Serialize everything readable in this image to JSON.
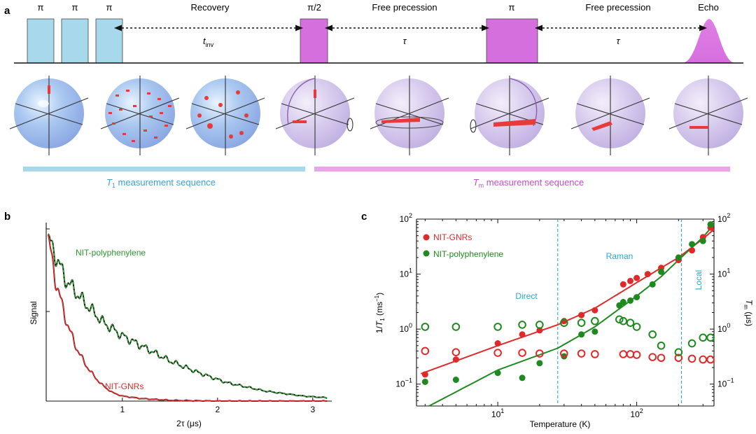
{
  "panel_a": {
    "label": "a",
    "pulses": {
      "pi1": "π",
      "pi2": "π",
      "pi3": "π",
      "pi_half": "π/2",
      "pi_refocus": "π"
    },
    "phases": {
      "recovery": "Recovery",
      "free1": "Free precession",
      "free2": "Free precession",
      "echo": "Echo"
    },
    "intervals": {
      "tinv_main": "t",
      "tinv_sub": "inv",
      "tau1": "τ",
      "tau2": "τ"
    },
    "t1_sequence": {
      "italic": "T",
      "sub": "1",
      "rest": " measurement sequence"
    },
    "tm_sequence": {
      "italic": "T",
      "sub": "m",
      "rest": " measurement sequence"
    },
    "colors": {
      "t1": "#a8d8ec",
      "tm": "#e7a5ea",
      "pulse_pi": "#a8d8ec",
      "pulse_tm": "#d56fde"
    }
  },
  "panel_b": {
    "label": "b",
    "ylabel": "Signal",
    "xlabel": "2τ (μs)",
    "series_labels": {
      "poly": "NIT-polyphenylene",
      "gnr": "NIT-GNRs"
    },
    "chart_data": {
      "type": "line",
      "title": "",
      "xlabel": "2τ (μs)",
      "ylabel": "Signal",
      "xlim": [
        0.2,
        3.2
      ],
      "ylim": [
        0,
        1.05
      ],
      "x_ticks": [
        "1",
        "2",
        "3"
      ],
      "series": [
        {
          "name": "NIT-polyphenylene",
          "color": "#2ca02c",
          "x": [
            0.22,
            0.3,
            0.4,
            0.5,
            0.6,
            0.7,
            0.8,
            1.0,
            1.2,
            1.5,
            1.8,
            2.1,
            2.5,
            2.9,
            3.15
          ],
          "values": [
            0.97,
            0.87,
            0.73,
            0.66,
            0.59,
            0.53,
            0.47,
            0.39,
            0.33,
            0.24,
            0.17,
            0.11,
            0.06,
            0.03,
            0.02
          ]
        },
        {
          "name": "NIT-GNRs",
          "color": "#e02a2a",
          "x": [
            0.22,
            0.3,
            0.4,
            0.5,
            0.6,
            0.7,
            0.8,
            0.9,
            1.0,
            1.2,
            1.5,
            2.0,
            3.15
          ],
          "values": [
            0.97,
            0.72,
            0.5,
            0.34,
            0.23,
            0.15,
            0.09,
            0.05,
            0.03,
            0.015,
            0.005,
            0.0,
            0.0
          ]
        }
      ]
    }
  },
  "panel_c": {
    "label": "c",
    "ylabel_left": {
      "main": "1/",
      "italic": "T",
      "sub": "1",
      "unit": " (ms",
      "sup": "−1",
      "close": ")"
    },
    "ylabel_right": {
      "italic": "T",
      "sub": "m",
      "unit": " (μs)"
    },
    "xlabel": "Temperature (K)",
    "regions": {
      "direct": "Direct",
      "raman": "Raman",
      "local": "Local"
    },
    "legend": {
      "gnr": "NIT-GNRs",
      "poly": "NIT-polyphenylene"
    },
    "ticks": {
      "left": [
        {
          "base": "10",
          "exp": "2"
        },
        {
          "base": "10",
          "exp": "1"
        },
        {
          "base": "10",
          "exp": "0"
        },
        {
          "base": "10",
          "exp": "−1"
        }
      ],
      "right": [
        {
          "base": "10",
          "exp": "2"
        },
        {
          "base": "10",
          "exp": "1"
        },
        {
          "base": "10",
          "exp": "0"
        },
        {
          "base": "10",
          "exp": "−1"
        }
      ],
      "bottom": [
        {
          "base": "10",
          "exp": "1"
        },
        {
          "base": "10",
          "exp": "2"
        }
      ]
    },
    "chart_data": {
      "type": "scatter",
      "xlabel": "Temperature (K)",
      "ylabel": "1/T1 (ms−1)",
      "ylabel_right": "Tm (μs)",
      "x_scale": "log",
      "y_scale": "log",
      "xlim": [
        2.6,
        360
      ],
      "ylim": [
        0.04,
        100
      ],
      "ylim_right": [
        0.04,
        100
      ],
      "region_boundaries_K": [
        27,
        210
      ],
      "series": [
        {
          "name": "NIT-GNRs 1/T1",
          "style": "filled",
          "color": "#e02a2a",
          "x": [
            3,
            5,
            10,
            15,
            20,
            30,
            40,
            50,
            80,
            90,
            100,
            120,
            150,
            200,
            250,
            300,
            340
          ],
          "values": [
            0.15,
            0.28,
            0.55,
            0.8,
            0.95,
            1.4,
            1.8,
            2.2,
            6.5,
            7.5,
            8.5,
            10,
            13,
            18,
            27,
            47,
            70
          ]
        },
        {
          "name": "NIT-polyphenylene 1/T1",
          "style": "filled",
          "color": "#1e8a1e",
          "x": [
            3,
            5,
            10,
            15,
            20,
            30,
            40,
            50,
            75,
            80,
            90,
            100,
            130,
            150,
            200,
            250,
            300,
            340
          ],
          "values": [
            0.11,
            0.12,
            0.16,
            0.13,
            0.24,
            0.32,
            0.8,
            0.9,
            2.7,
            3.1,
            3.3,
            3.8,
            6.5,
            11,
            20,
            35,
            40,
            80
          ]
        },
        {
          "name": "NIT-GNRs Tm",
          "style": "open",
          "color": "#e02a2a",
          "x": [
            3,
            5,
            10,
            15,
            20,
            30,
            40,
            50,
            80,
            90,
            100,
            130,
            150,
            200,
            250,
            300,
            340
          ],
          "values": [
            0.4,
            0.38,
            0.37,
            0.37,
            0.36,
            0.36,
            0.36,
            0.35,
            0.35,
            0.35,
            0.34,
            0.31,
            0.3,
            0.3,
            0.29,
            0.28,
            0.28
          ]
        },
        {
          "name": "NIT-polyphenylene Tm",
          "style": "open",
          "color": "#1e8a1e",
          "x": [
            3,
            5,
            10,
            15,
            20,
            30,
            40,
            50,
            75,
            80,
            90,
            100,
            130,
            150,
            200,
            250,
            300,
            340
          ],
          "values": [
            1.1,
            1.1,
            1.1,
            1.2,
            1.2,
            1.3,
            1.3,
            1.4,
            1.5,
            1.4,
            1.3,
            1.1,
            0.8,
            0.5,
            0.38,
            0.55,
            0.7,
            0.7
          ]
        },
        {
          "name": "NIT-GNRs fit",
          "style": "line",
          "color": "#e02a2a",
          "x": [
            2.8,
            10,
            27,
            50,
            100,
            150,
            200,
            300,
            360
          ],
          "values": [
            0.155,
            0.5,
            1.2,
            2.4,
            7,
            13,
            20,
            44,
            65
          ]
        },
        {
          "name": "NIT-polyphenylene fit",
          "style": "line",
          "color": "#1e8a1e",
          "x": [
            3.2,
            10,
            27,
            50,
            100,
            150,
            200,
            300,
            360
          ],
          "values": [
            0.04,
            0.18,
            0.45,
            1.1,
            4,
            9,
            18,
            47,
            80
          ]
        }
      ]
    }
  }
}
